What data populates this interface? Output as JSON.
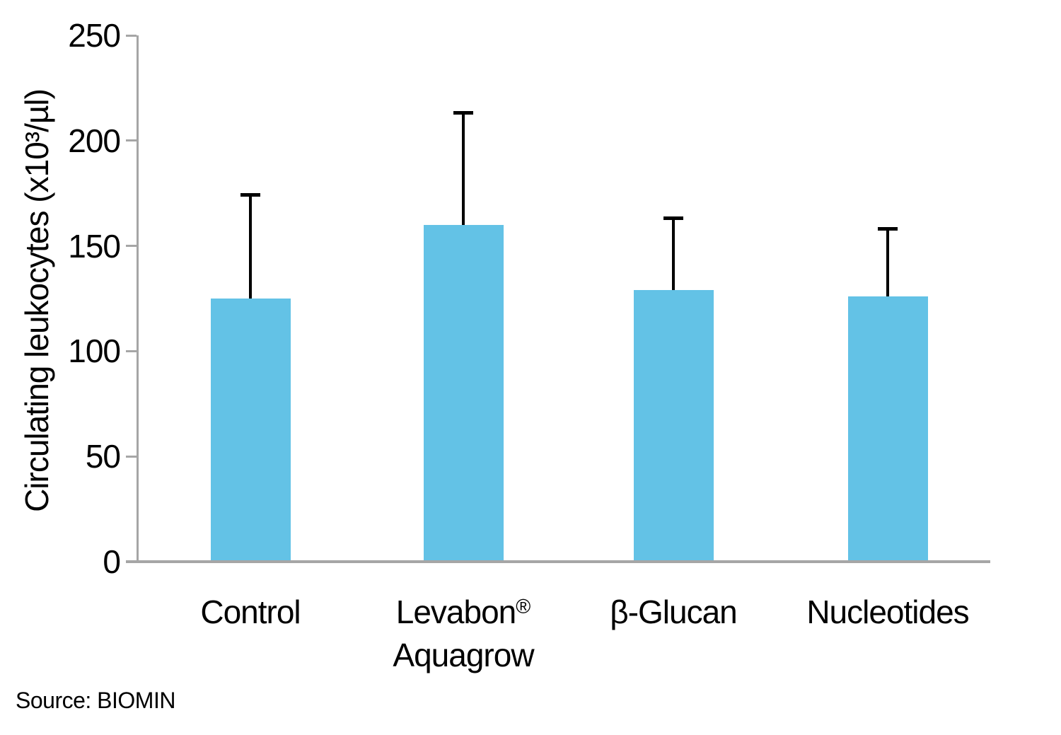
{
  "chart_data": {
    "type": "bar",
    "title": "",
    "ylabel": "Circulating leukocytes (x10³/µl)",
    "xlabel": "",
    "categories": [
      "Control",
      "Levabon® Aquagrow",
      "β-Glucan",
      "Nucleotides"
    ],
    "category_lines": [
      [
        "Control"
      ],
      [
        "Levabon®",
        "Aquagrow"
      ],
      [
        "β-Glucan"
      ],
      [
        "Nucleotides"
      ]
    ],
    "values": [
      125,
      160,
      129,
      126
    ],
    "errors_plus": [
      50,
      54,
      35,
      33
    ],
    "ylim": [
      0,
      250
    ],
    "yticks": [
      0,
      50,
      100,
      150,
      200,
      250
    ],
    "grid": false,
    "legend": false,
    "bar_color": "#63C2E6",
    "error_bar_color": "#000000",
    "axis_color": "#A6A6A6",
    "text_color": "#000000"
  },
  "source": {
    "label": "Source: BIOMIN"
  }
}
